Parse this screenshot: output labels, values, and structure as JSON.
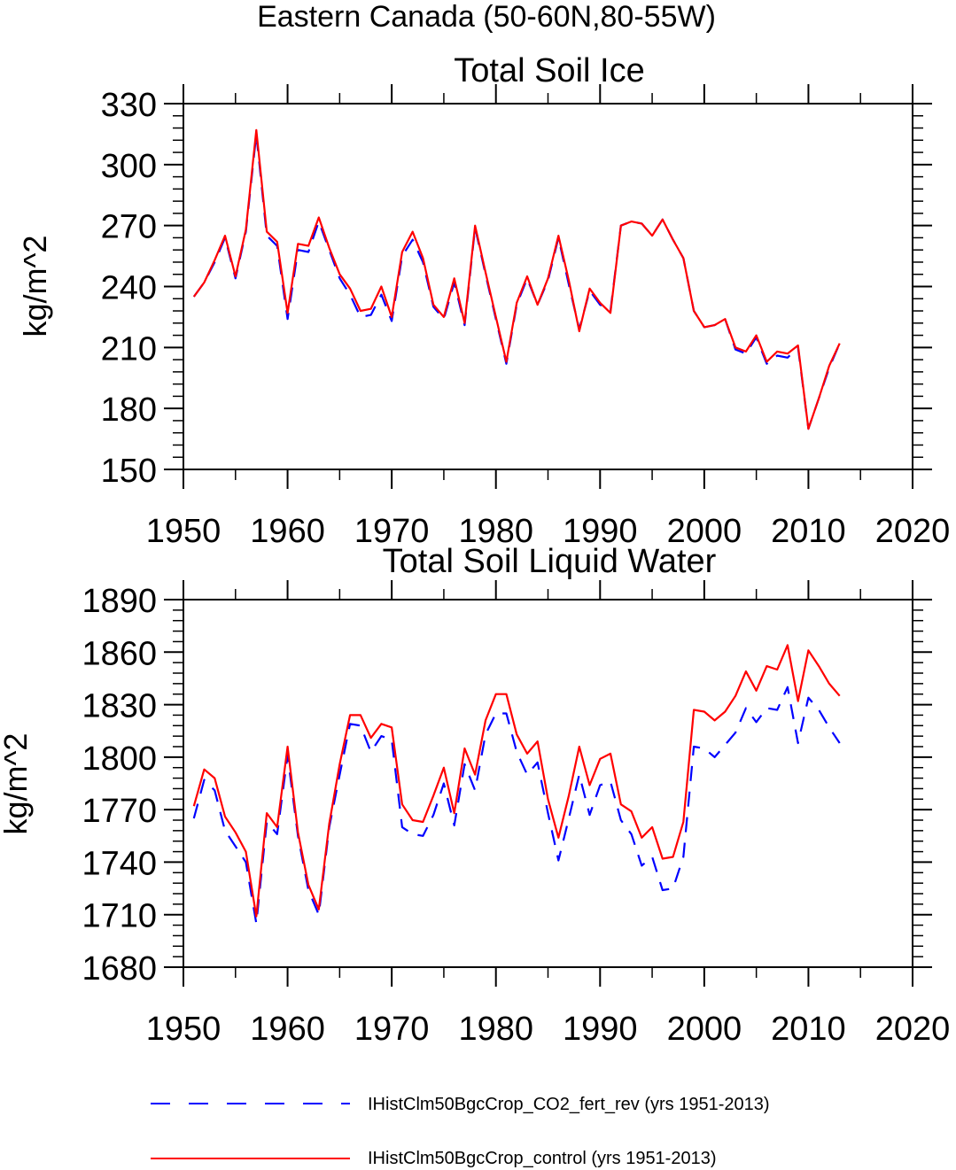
{
  "figure_title": "Eastern Canada (50-60N,80-55W)",
  "colors": {
    "control": "#ff0000",
    "co2_fert": "#0000ff",
    "axis": "#000000"
  },
  "legend": {
    "entries": [
      {
        "label": "IHistClm50BgcCrop_CO2_fert_rev (yrs 1951-2013)",
        "color": "#0000ff",
        "style": "dashed"
      },
      {
        "label": "IHistClm50BgcCrop_control (yrs 1951-2013)",
        "color": "#ff0000",
        "style": "solid"
      }
    ]
  },
  "chart_data": [
    {
      "type": "line",
      "title": "Total Soil Ice",
      "ylabel": "kg/m^2",
      "xlabel": "",
      "xlim": [
        1950,
        2020
      ],
      "ylim": [
        150,
        330
      ],
      "xticks": [
        1950,
        1960,
        1970,
        1980,
        1990,
        2000,
        2010,
        2020
      ],
      "yticks": [
        150,
        180,
        210,
        240,
        270,
        300,
        330
      ],
      "grid": false,
      "x": [
        1951,
        1952,
        1953,
        1954,
        1955,
        1956,
        1957,
        1958,
        1959,
        1960,
        1961,
        1962,
        1963,
        1964,
        1965,
        1966,
        1967,
        1968,
        1969,
        1970,
        1971,
        1972,
        1973,
        1974,
        1975,
        1976,
        1977,
        1978,
        1979,
        1980,
        1981,
        1982,
        1983,
        1984,
        1985,
        1986,
        1987,
        1988,
        1989,
        1990,
        1991,
        1992,
        1993,
        1994,
        1995,
        1996,
        1997,
        1998,
        1999,
        2000,
        2001,
        2002,
        2003,
        2004,
        2005,
        2006,
        2007,
        2008,
        2009,
        2010,
        2011,
        2012,
        2013
      ],
      "series": [
        {
          "name": "IHistClm50BgcCrop_CO2_fert_rev (yrs 1951-2013)",
          "color": "#0000ff",
          "style": "dashed",
          "values": [
            235,
            242,
            252,
            264,
            244,
            267,
            315,
            265,
            260,
            224,
            258,
            257,
            272,
            258,
            244,
            236,
            225,
            226,
            236,
            223,
            255,
            263,
            252,
            230,
            224,
            242,
            221,
            269,
            246,
            224,
            202,
            231,
            244,
            231,
            243,
            264,
            241,
            219,
            238,
            231,
            228,
            270,
            272,
            271,
            265,
            273,
            263,
            254,
            228,
            220,
            221,
            224,
            209,
            207,
            215,
            202,
            206,
            205,
            210,
            170,
            185,
            200,
            212
          ]
        },
        {
          "name": "IHistClm50BgcCrop_control (yrs 1951-2013)",
          "color": "#ff0000",
          "style": "solid",
          "values": [
            235,
            242,
            253,
            265,
            245,
            268,
            317,
            267,
            262,
            227,
            261,
            260,
            274,
            259,
            246,
            239,
            228,
            229,
            240,
            225,
            257,
            267,
            254,
            231,
            225,
            244,
            222,
            270,
            247,
            225,
            203,
            232,
            245,
            231,
            244,
            265,
            243,
            218,
            239,
            232,
            227,
            270,
            272,
            271,
            265,
            273,
            263,
            254,
            228,
            220,
            221,
            224,
            210,
            208,
            216,
            203,
            208,
            207,
            211,
            170,
            185,
            201,
            212
          ]
        }
      ]
    },
    {
      "type": "line",
      "title": "Total Soil Liquid Water",
      "ylabel": "kg/m^2",
      "xlabel": "",
      "xlim": [
        1950,
        2020
      ],
      "ylim": [
        1680,
        1890
      ],
      "xticks": [
        1950,
        1960,
        1970,
        1980,
        1990,
        2000,
        2010,
        2020
      ],
      "yticks": [
        1680,
        1710,
        1740,
        1770,
        1800,
        1830,
        1860,
        1890
      ],
      "grid": false,
      "x": [
        1951,
        1952,
        1953,
        1954,
        1955,
        1956,
        1957,
        1958,
        1959,
        1960,
        1961,
        1962,
        1963,
        1964,
        1965,
        1966,
        1967,
        1968,
        1969,
        1970,
        1971,
        1972,
        1973,
        1974,
        1975,
        1976,
        1977,
        1978,
        1979,
        1980,
        1981,
        1982,
        1983,
        1984,
        1985,
        1986,
        1987,
        1988,
        1989,
        1990,
        1991,
        1992,
        1993,
        1994,
        1995,
        1996,
        1997,
        1998,
        1999,
        2000,
        2001,
        2002,
        2003,
        2004,
        2005,
        2006,
        2007,
        2008,
        2009,
        2010,
        2011,
        2012,
        2013
      ],
      "series": [
        {
          "name": "IHistClm50BgcCrop_CO2_fert_rev (yrs 1951-2013)",
          "color": "#0000ff",
          "style": "dashed",
          "values": [
            1765,
            1787,
            1781,
            1758,
            1749,
            1740,
            1705,
            1763,
            1756,
            1801,
            1755,
            1724,
            1710,
            1760,
            1790,
            1819,
            1818,
            1803,
            1812,
            1810,
            1760,
            1756,
            1755,
            1767,
            1785,
            1761,
            1796,
            1781,
            1813,
            1825,
            1825,
            1803,
            1790,
            1797,
            1768,
            1741,
            1765,
            1790,
            1767,
            1784,
            1786,
            1764,
            1756,
            1738,
            1743,
            1724,
            1725,
            1743,
            1806,
            1805,
            1800,
            1807,
            1814,
            1828,
            1820,
            1828,
            1827,
            1840,
            1808,
            1834,
            1827,
            1817,
            1808
          ]
        },
        {
          "name": "IHistClm50BgcCrop_control (yrs 1951-2013)",
          "color": "#ff0000",
          "style": "solid",
          "values": [
            1772,
            1793,
            1788,
            1766,
            1757,
            1746,
            1709,
            1768,
            1760,
            1806,
            1757,
            1727,
            1713,
            1762,
            1796,
            1824,
            1824,
            1811,
            1819,
            1817,
            1773,
            1764,
            1763,
            1778,
            1794,
            1768,
            1805,
            1790,
            1821,
            1836,
            1836,
            1813,
            1802,
            1809,
            1776,
            1754,
            1778,
            1806,
            1784,
            1799,
            1802,
            1773,
            1769,
            1754,
            1760,
            1742,
            1743,
            1763,
            1827,
            1826,
            1821,
            1826,
            1835,
            1849,
            1838,
            1852,
            1850,
            1864,
            1832,
            1861,
            1852,
            1842,
            1835
          ]
        }
      ]
    }
  ]
}
